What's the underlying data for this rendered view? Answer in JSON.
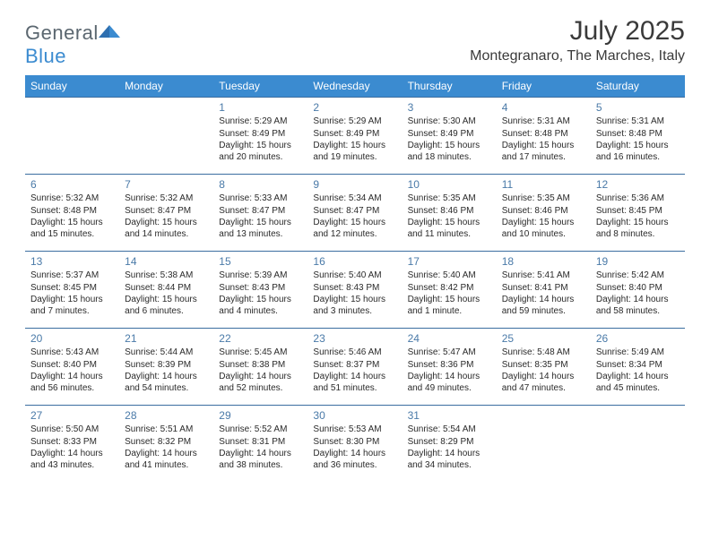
{
  "brand": {
    "name_a": "General",
    "name_b": "Blue"
  },
  "title": "July 2025",
  "location": "Montegranaro, The Marches, Italy",
  "colors": {
    "header_bg": "#3b8bd0",
    "header_text": "#ffffff",
    "row_border": "#3b6ea0",
    "daynum": "#4a7aa8",
    "body_text": "#2a2a2a",
    "logo_gray": "#5b6770",
    "logo_blue": "#3b8bd0"
  },
  "typography": {
    "title_size_pt": 30,
    "location_size_pt": 16,
    "weekday_size_pt": 12,
    "daynum_size_pt": 12,
    "body_size_pt": 10
  },
  "weekdays": [
    "Sunday",
    "Monday",
    "Tuesday",
    "Wednesday",
    "Thursday",
    "Friday",
    "Saturday"
  ],
  "weeks": [
    [
      null,
      null,
      {
        "n": "1",
        "sr": "5:29 AM",
        "ss": "8:49 PM",
        "dl": "15 hours and 20 minutes."
      },
      {
        "n": "2",
        "sr": "5:29 AM",
        "ss": "8:49 PM",
        "dl": "15 hours and 19 minutes."
      },
      {
        "n": "3",
        "sr": "5:30 AM",
        "ss": "8:49 PM",
        "dl": "15 hours and 18 minutes."
      },
      {
        "n": "4",
        "sr": "5:31 AM",
        "ss": "8:48 PM",
        "dl": "15 hours and 17 minutes."
      },
      {
        "n": "5",
        "sr": "5:31 AM",
        "ss": "8:48 PM",
        "dl": "15 hours and 16 minutes."
      }
    ],
    [
      {
        "n": "6",
        "sr": "5:32 AM",
        "ss": "8:48 PM",
        "dl": "15 hours and 15 minutes."
      },
      {
        "n": "7",
        "sr": "5:32 AM",
        "ss": "8:47 PM",
        "dl": "15 hours and 14 minutes."
      },
      {
        "n": "8",
        "sr": "5:33 AM",
        "ss": "8:47 PM",
        "dl": "15 hours and 13 minutes."
      },
      {
        "n": "9",
        "sr": "5:34 AM",
        "ss": "8:47 PM",
        "dl": "15 hours and 12 minutes."
      },
      {
        "n": "10",
        "sr": "5:35 AM",
        "ss": "8:46 PM",
        "dl": "15 hours and 11 minutes."
      },
      {
        "n": "11",
        "sr": "5:35 AM",
        "ss": "8:46 PM",
        "dl": "15 hours and 10 minutes."
      },
      {
        "n": "12",
        "sr": "5:36 AM",
        "ss": "8:45 PM",
        "dl": "15 hours and 8 minutes."
      }
    ],
    [
      {
        "n": "13",
        "sr": "5:37 AM",
        "ss": "8:45 PM",
        "dl": "15 hours and 7 minutes."
      },
      {
        "n": "14",
        "sr": "5:38 AM",
        "ss": "8:44 PM",
        "dl": "15 hours and 6 minutes."
      },
      {
        "n": "15",
        "sr": "5:39 AM",
        "ss": "8:43 PM",
        "dl": "15 hours and 4 minutes."
      },
      {
        "n": "16",
        "sr": "5:40 AM",
        "ss": "8:43 PM",
        "dl": "15 hours and 3 minutes."
      },
      {
        "n": "17",
        "sr": "5:40 AM",
        "ss": "8:42 PM",
        "dl": "15 hours and 1 minute."
      },
      {
        "n": "18",
        "sr": "5:41 AM",
        "ss": "8:41 PM",
        "dl": "14 hours and 59 minutes."
      },
      {
        "n": "19",
        "sr": "5:42 AM",
        "ss": "8:40 PM",
        "dl": "14 hours and 58 minutes."
      }
    ],
    [
      {
        "n": "20",
        "sr": "5:43 AM",
        "ss": "8:40 PM",
        "dl": "14 hours and 56 minutes."
      },
      {
        "n": "21",
        "sr": "5:44 AM",
        "ss": "8:39 PM",
        "dl": "14 hours and 54 minutes."
      },
      {
        "n": "22",
        "sr": "5:45 AM",
        "ss": "8:38 PM",
        "dl": "14 hours and 52 minutes."
      },
      {
        "n": "23",
        "sr": "5:46 AM",
        "ss": "8:37 PM",
        "dl": "14 hours and 51 minutes."
      },
      {
        "n": "24",
        "sr": "5:47 AM",
        "ss": "8:36 PM",
        "dl": "14 hours and 49 minutes."
      },
      {
        "n": "25",
        "sr": "5:48 AM",
        "ss": "8:35 PM",
        "dl": "14 hours and 47 minutes."
      },
      {
        "n": "26",
        "sr": "5:49 AM",
        "ss": "8:34 PM",
        "dl": "14 hours and 45 minutes."
      }
    ],
    [
      {
        "n": "27",
        "sr": "5:50 AM",
        "ss": "8:33 PM",
        "dl": "14 hours and 43 minutes."
      },
      {
        "n": "28",
        "sr": "5:51 AM",
        "ss": "8:32 PM",
        "dl": "14 hours and 41 minutes."
      },
      {
        "n": "29",
        "sr": "5:52 AM",
        "ss": "8:31 PM",
        "dl": "14 hours and 38 minutes."
      },
      {
        "n": "30",
        "sr": "5:53 AM",
        "ss": "8:30 PM",
        "dl": "14 hours and 36 minutes."
      },
      {
        "n": "31",
        "sr": "5:54 AM",
        "ss": "8:29 PM",
        "dl": "14 hours and 34 minutes."
      },
      null,
      null
    ]
  ],
  "labels": {
    "sunrise": "Sunrise:",
    "sunset": "Sunset:",
    "daylight": "Daylight:"
  }
}
